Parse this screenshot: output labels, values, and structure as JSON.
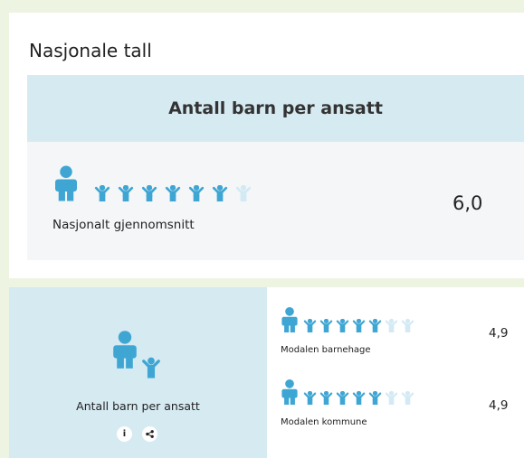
{
  "title": "Nasjonale tall",
  "national": {
    "header": "Antall barn per ansatt",
    "label": "Nasjonalt gjennomsnitt",
    "value": "6,0"
  },
  "local": {
    "label": "Antall barn per ansatt",
    "info_button": "i",
    "rows": [
      {
        "label": "Modalen barnehage",
        "value": "4,9"
      },
      {
        "label": "Modalen kommune",
        "value": "4,9"
      }
    ]
  }
}
